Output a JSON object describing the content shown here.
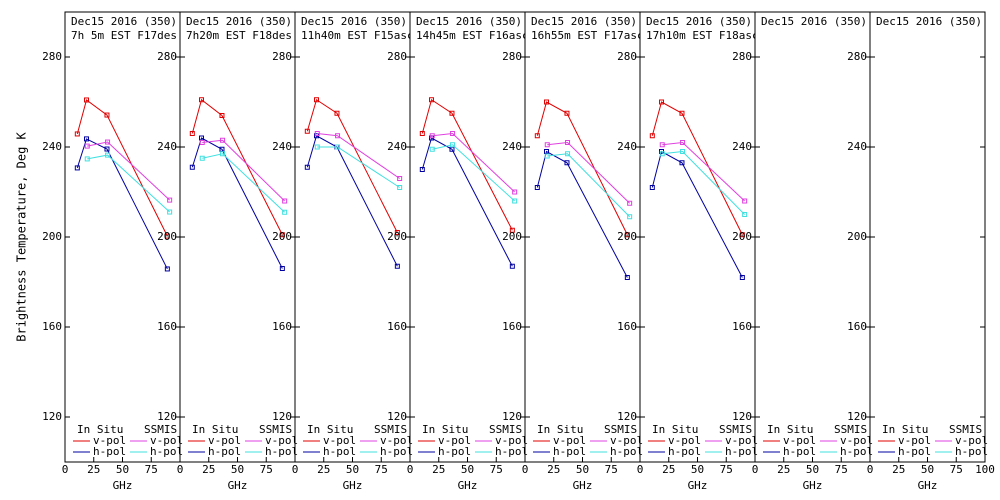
{
  "y_label": "Brightness Temperature, Deg K",
  "chart_data": [
    {
      "type": "line",
      "title": "Dec15 2016 (350)",
      "subtitle": "7h 5m  EST F17des",
      "xlabel": "GHz",
      "xlim": [
        0,
        100
      ],
      "ylim": [
        100,
        300
      ],
      "xticks": [
        0,
        25,
        50,
        75
      ],
      "yticks": [
        120,
        160,
        200,
        240,
        280
      ],
      "series_groups": [
        {
          "name": "In Situ",
          "series": [
            {
              "name": "v-pol",
              "color": "#e00000",
              "x": [
                10.7,
                18.7,
                36.5,
                89
              ],
              "values": [
                245.8,
                260.9,
                254.2,
                200.4
              ]
            },
            {
              "name": "h-pol",
              "color": "#0000a0",
              "x": [
                10.7,
                18.7,
                36.5,
                89
              ],
              "values": [
                230.7,
                243.6,
                239.1,
                185.8
              ]
            }
          ]
        },
        {
          "name": "SSMIS",
          "series": [
            {
              "name": "v-pol",
              "color": "#e040e0",
              "x": [
                19.35,
                37,
                91
              ],
              "values": [
                240.4,
                242.2,
                216.4
              ]
            },
            {
              "name": "h-pol",
              "color": "#40e0e0",
              "x": [
                19.35,
                37,
                91
              ],
              "values": [
                234.7,
                236.4,
                211.1
              ]
            }
          ]
        }
      ]
    },
    {
      "type": "line",
      "title": "Dec15 2016 (350)",
      "subtitle": "7h20m  EST F18des",
      "xlabel": "GHz",
      "xlim": [
        0,
        100
      ],
      "ylim": [
        100,
        300
      ],
      "xticks": [
        0,
        25,
        50,
        75
      ],
      "yticks": [
        120,
        160,
        200,
        240,
        280
      ],
      "series_groups": [
        {
          "name": "In Situ",
          "series": [
            {
              "name": "v-pol",
              "color": "#e00000",
              "x": [
                10.7,
                18.7,
                36.5,
                89
              ],
              "values": [
                246,
                261,
                254,
                201
              ]
            },
            {
              "name": "h-pol",
              "color": "#0000a0",
              "x": [
                10.7,
                18.7,
                36.5,
                89
              ],
              "values": [
                231,
                244,
                239,
                186
              ]
            }
          ]
        },
        {
          "name": "SSMIS",
          "series": [
            {
              "name": "v-pol",
              "color": "#e040e0",
              "x": [
                19.35,
                37,
                91
              ],
              "values": [
                242,
                243,
                216
              ]
            },
            {
              "name": "h-pol",
              "color": "#40e0e0",
              "x": [
                19.35,
                37,
                91
              ],
              "values": [
                235,
                237,
                211
              ]
            }
          ]
        }
      ]
    },
    {
      "type": "line",
      "title": "Dec15 2016 (350)",
      "subtitle": "11h40m  EST F15asc",
      "xlabel": "GHz",
      "xlim": [
        0,
        100
      ],
      "ylim": [
        100,
        300
      ],
      "xticks": [
        0,
        25,
        50,
        75
      ],
      "yticks": [
        120,
        160,
        200,
        240,
        280
      ],
      "series_groups": [
        {
          "name": "In Situ",
          "series": [
            {
              "name": "v-pol",
              "color": "#e00000",
              "x": [
                10.7,
                18.7,
                36.5,
                89
              ],
              "values": [
                247,
                261,
                255,
                202
              ]
            },
            {
              "name": "h-pol",
              "color": "#0000a0",
              "x": [
                10.7,
                18.7,
                36.5,
                89
              ],
              "values": [
                231,
                245,
                240,
                187
              ]
            }
          ]
        },
        {
          "name": "SSMIS",
          "series": [
            {
              "name": "v-pol",
              "color": "#e040e0",
              "x": [
                19.35,
                37,
                91
              ],
              "values": [
                246,
                245,
                226
              ]
            },
            {
              "name": "h-pol",
              "color": "#40e0e0",
              "x": [
                19.35,
                37,
                91
              ],
              "values": [
                240,
                240,
                222
              ]
            }
          ]
        }
      ]
    },
    {
      "type": "line",
      "title": "Dec15 2016 (350)",
      "subtitle": "14h45m  EST F16asc",
      "xlabel": "GHz",
      "xlim": [
        0,
        100
      ],
      "ylim": [
        100,
        300
      ],
      "xticks": [
        0,
        25,
        50,
        75
      ],
      "yticks": [
        120,
        160,
        200,
        240,
        280
      ],
      "series_groups": [
        {
          "name": "In Situ",
          "series": [
            {
              "name": "v-pol",
              "color": "#e00000",
              "x": [
                10.7,
                18.7,
                36.5,
                89
              ],
              "values": [
                246,
                261,
                255,
                203
              ]
            },
            {
              "name": "h-pol",
              "color": "#0000a0",
              "x": [
                10.7,
                18.7,
                36.5,
                89
              ],
              "values": [
                230,
                244,
                239,
                187
              ]
            }
          ]
        },
        {
          "name": "SSMIS",
          "series": [
            {
              "name": "v-pol",
              "color": "#e040e0",
              "x": [
                19.35,
                37,
                91
              ],
              "values": [
                245,
                246,
                220
              ]
            },
            {
              "name": "h-pol",
              "color": "#40e0e0",
              "x": [
                19.35,
                37,
                91
              ],
              "values": [
                239,
                241,
                216
              ]
            }
          ]
        }
      ]
    },
    {
      "type": "line",
      "title": "Dec15 2016 (350)",
      "subtitle": "16h55m  EST F17asc",
      "xlabel": "GHz",
      "xlim": [
        0,
        100
      ],
      "ylim": [
        100,
        300
      ],
      "xticks": [
        0,
        25,
        50,
        75
      ],
      "yticks": [
        120,
        160,
        200,
        240,
        280
      ],
      "series_groups": [
        {
          "name": "In Situ",
          "series": [
            {
              "name": "v-pol",
              "color": "#e00000",
              "x": [
                10.7,
                18.7,
                36.5,
                89
              ],
              "values": [
                245,
                260,
                255,
                201
              ]
            },
            {
              "name": "h-pol",
              "color": "#0000a0",
              "x": [
                10.7,
                18.7,
                36.5,
                89
              ],
              "values": [
                222,
                238,
                233,
                182
              ]
            }
          ]
        },
        {
          "name": "SSMIS",
          "series": [
            {
              "name": "v-pol",
              "color": "#e040e0",
              "x": [
                19.35,
                37,
                91
              ],
              "values": [
                241,
                242,
                215
              ]
            },
            {
              "name": "h-pol",
              "color": "#40e0e0",
              "x": [
                19.35,
                37,
                91
              ],
              "values": [
                236,
                237,
                209
              ]
            }
          ]
        }
      ]
    },
    {
      "type": "line",
      "title": "Dec15 2016 (350)",
      "subtitle": "17h10m  EST F18asc",
      "xlabel": "GHz",
      "xlim": [
        0,
        100
      ],
      "ylim": [
        100,
        300
      ],
      "xticks": [
        0,
        25,
        50,
        75
      ],
      "yticks": [
        120,
        160,
        200,
        240,
        280
      ],
      "series_groups": [
        {
          "name": "In Situ",
          "series": [
            {
              "name": "v-pol",
              "color": "#e00000",
              "x": [
                10.7,
                18.7,
                36.5,
                89
              ],
              "values": [
                245,
                260,
                255,
                201
              ]
            },
            {
              "name": "h-pol",
              "color": "#0000a0",
              "x": [
                10.7,
                18.7,
                36.5,
                89
              ],
              "values": [
                222,
                238,
                233,
                182
              ]
            }
          ]
        },
        {
          "name": "SSMIS",
          "series": [
            {
              "name": "v-pol",
              "color": "#e040e0",
              "x": [
                19.35,
                37,
                91
              ],
              "values": [
                241,
                242,
                216
              ]
            },
            {
              "name": "h-pol",
              "color": "#40e0e0",
              "x": [
                19.35,
                37,
                91
              ],
              "values": [
                237,
                238,
                210
              ]
            }
          ]
        }
      ]
    },
    {
      "type": "line",
      "title": "Dec15 2016 (350)",
      "xlabel": "GHz",
      "xlim": [
        0,
        100
      ],
      "ylim": [
        100,
        300
      ],
      "xticks": [
        0,
        25,
        50,
        75
      ],
      "yticks": [
        120,
        160,
        200,
        240,
        280
      ],
      "series_groups": [
        {
          "name": "In Situ",
          "series": [
            {
              "name": "v-pol",
              "color": "#e00000",
              "x": [],
              "values": []
            },
            {
              "name": "h-pol",
              "color": "#0000a0",
              "x": [],
              "values": []
            }
          ]
        },
        {
          "name": "SSMIS",
          "series": [
            {
              "name": "v-pol",
              "color": "#e040e0",
              "x": [],
              "values": []
            },
            {
              "name": "h-pol",
              "color": "#40e0e0",
              "x": [],
              "values": []
            }
          ]
        }
      ]
    },
    {
      "type": "line",
      "title": "Dec15 2016 (350)",
      "xlabel": "GHz",
      "xlim": [
        0,
        100
      ],
      "ylim": [
        100,
        300
      ],
      "xticks": [
        0,
        25,
        50,
        75,
        100
      ],
      "yticks": [
        120,
        160,
        200,
        240,
        280
      ],
      "series_groups": [
        {
          "name": "In Situ",
          "series": [
            {
              "name": "v-pol",
              "color": "#e00000",
              "x": [],
              "values": []
            },
            {
              "name": "h-pol",
              "color": "#0000a0",
              "x": [],
              "values": []
            }
          ]
        },
        {
          "name": "SSMIS",
          "series": [
            {
              "name": "v-pol",
              "color": "#e040e0",
              "x": [],
              "values": []
            },
            {
              "name": "h-pol",
              "color": "#40e0e0",
              "x": [],
              "values": []
            }
          ]
        }
      ]
    }
  ]
}
